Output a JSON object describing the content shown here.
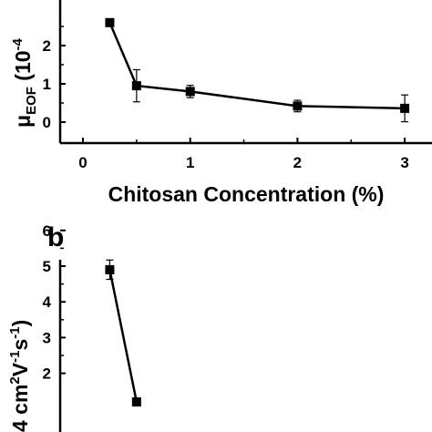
{
  "chart_data": [
    {
      "type": "line",
      "panel": "a",
      "xlabel": "Chitosan Concentration (%)",
      "ylabel": "μEOF (10⁻⁴",
      "ylabel_main": "μ",
      "ylabel_sub": "EOF",
      "ylabel_tail": " (10",
      "ylabel_sup": "-4",
      "x_ticks": [
        "0",
        "1",
        "2",
        "3"
      ],
      "y_ticks": [
        "0",
        "1",
        "2"
      ],
      "xlim": [
        -0.3,
        3.25
      ],
      "ylim": [
        -0.4,
        3.1
      ],
      "grid": false,
      "series": [
        {
          "x": [
            0.25,
            0.5,
            1,
            2,
            3
          ],
          "y": [
            2.6,
            0.95,
            0.8,
            0.42,
            0.36
          ],
          "err": [
            0.1,
            0.42,
            0.16,
            0.15,
            0.35
          ]
        }
      ]
    },
    {
      "type": "line",
      "panel": "b",
      "label": "b",
      "ylabel_a": "4 cm",
      "ylabel_sup1": "2",
      "ylabel_b": "V",
      "ylabel_sup2": "-1",
      "ylabel_c": "s",
      "ylabel_sup3": "-1",
      "ylabel_d": ")",
      "y_ticks": [
        "2",
        "3",
        "4",
        "5",
        "6"
      ],
      "ylim": [
        1.2,
        6.3
      ],
      "grid": false,
      "series": [
        {
          "x": [
            0.25,
            0.5
          ],
          "y": [
            4.9,
            1.2
          ],
          "err": [
            0.27,
            0
          ]
        }
      ]
    }
  ]
}
